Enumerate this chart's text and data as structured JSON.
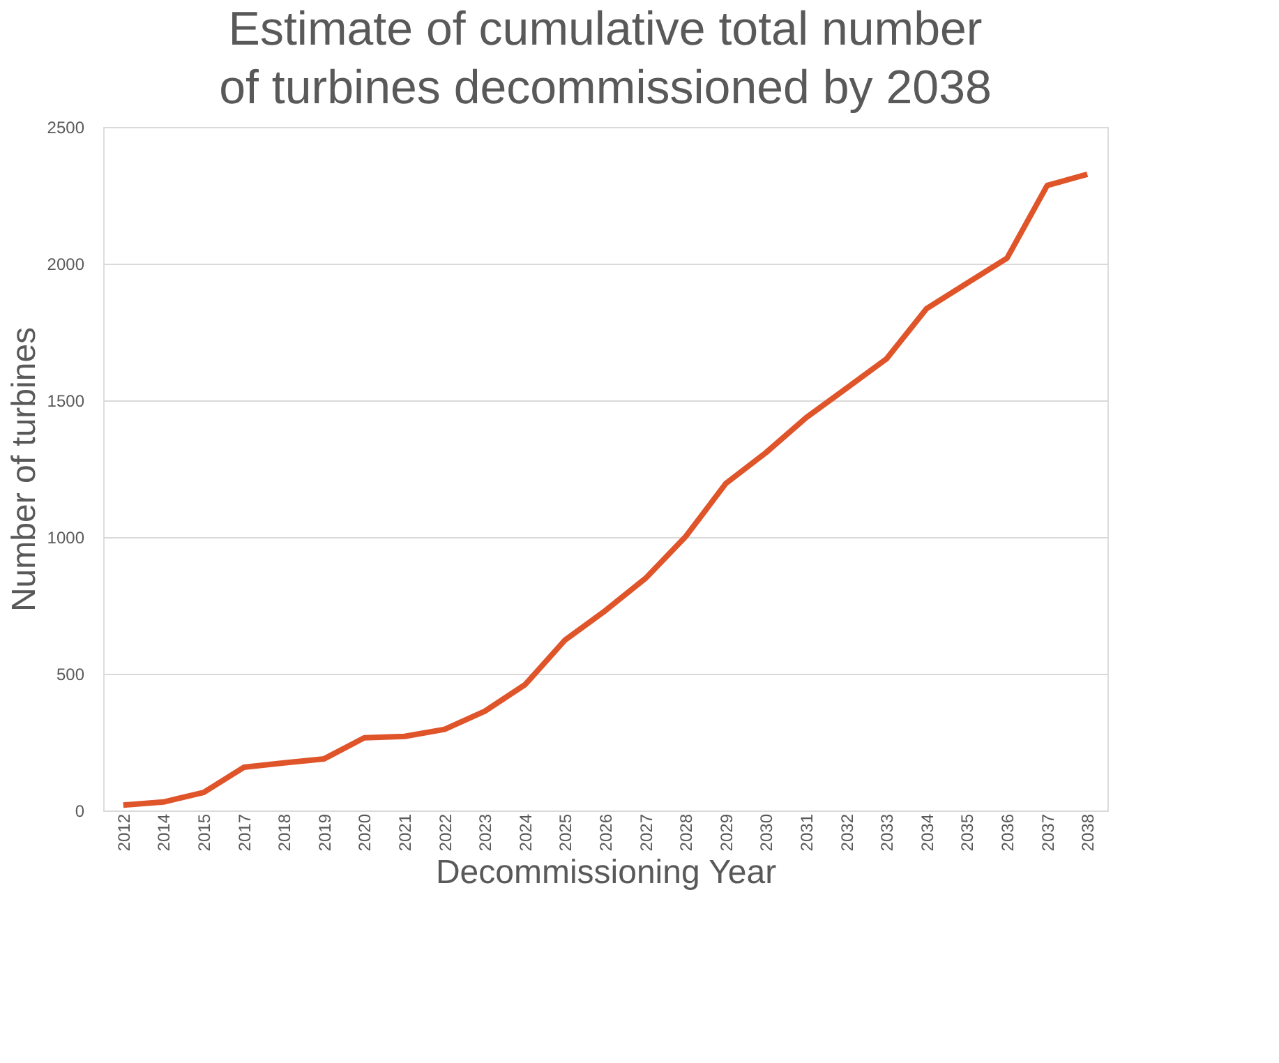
{
  "chart_data": {
    "type": "line",
    "title": "Estimate of cumulative total number of turbines decommissioned by 2038",
    "xlabel": "Decommissioning Year",
    "ylabel": "Number of turbines",
    "categories": [
      "2012",
      "2014",
      "2015",
      "2017",
      "2018",
      "2019",
      "2020",
      "2021",
      "2022",
      "2023",
      "2024",
      "2025",
      "2026",
      "2027",
      "2028",
      "2029",
      "2030",
      "2031",
      "2032",
      "2033",
      "2034",
      "2035",
      "2036",
      "2037",
      "2038"
    ],
    "series": [
      {
        "color": "#e0542a",
        "values": [
          20,
          31,
          66,
          158,
          174,
          189,
          266,
          271,
          297,
          363,
          460,
          624,
          731,
          849,
          1002,
          1196,
          1309,
          1437,
          1544,
          1652,
          1836,
          1928,
          2020,
          2286,
          2327
        ]
      }
    ],
    "ylim": [
      0,
      2500
    ],
    "yticks": [
      0,
      500,
      1000,
      1500,
      2000,
      2500
    ],
    "grid": "y",
    "marker": "none",
    "line_style": "solid"
  }
}
